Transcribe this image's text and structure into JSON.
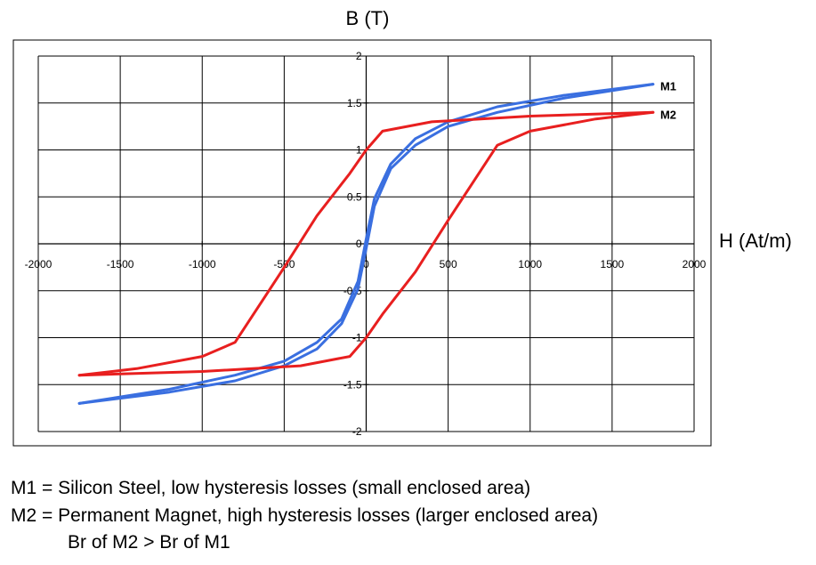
{
  "chart_data": {
    "type": "line",
    "ylabel": "B (T)",
    "xlabel": "H (At/m)",
    "xlim": [
      -2000,
      2000
    ],
    "ylim": [
      -2,
      2
    ],
    "x_ticks": [
      -2000,
      -1500,
      -1000,
      -500,
      0,
      500,
      1000,
      1500,
      2000
    ],
    "y_ticks": [
      -2,
      -1.5,
      -1,
      -0.5,
      0,
      0.5,
      1,
      1.5,
      2
    ],
    "x_tick_labels": [
      "-2000",
      "-1500",
      "-1000",
      "-500",
      "0",
      "500",
      "1000",
      "1500",
      "2000"
    ],
    "y_tick_labels": [
      "-2",
      "-1.5",
      "-1",
      "-0.5",
      "0",
      "0.5",
      "1",
      "1.5",
      "2"
    ],
    "grid": true,
    "legend": "none",
    "series": [
      {
        "name": "M1",
        "color": "#3a6fe0",
        "branches": [
          {
            "x": [
              -1750,
              -1200,
              -800,
              -500,
              -300,
              -150,
              -50,
              0,
              50,
              150,
              300,
              500,
              800,
              1200,
              1750
            ],
            "y": [
              -1.7,
              -1.58,
              -1.46,
              -1.3,
              -1.12,
              -0.85,
              -0.48,
              -0.05,
              0.4,
              0.8,
              1.05,
              1.25,
              1.4,
              1.55,
              1.7
            ]
          },
          {
            "x": [
              1750,
              1200,
              800,
              500,
              300,
              150,
              50,
              0,
              -50,
              -150,
              -300,
              -500,
              -800,
              -1200,
              -1750
            ],
            "y": [
              1.7,
              1.58,
              1.46,
              1.3,
              1.12,
              0.85,
              0.48,
              0.05,
              -0.4,
              -0.8,
              -1.05,
              -1.25,
              -1.4,
              -1.55,
              -1.7
            ]
          }
        ]
      },
      {
        "name": "M2",
        "color": "#e81f1f",
        "branches": [
          {
            "x": [
              -1750,
              -1000,
              -400,
              -100,
              0,
              100,
              300,
              500,
              800,
              1000,
              1400,
              1750
            ],
            "y": [
              -1.4,
              -1.36,
              -1.3,
              -1.2,
              -1.0,
              -0.75,
              -0.3,
              0.25,
              1.05,
              1.2,
              1.33,
              1.4
            ]
          },
          {
            "x": [
              1750,
              1000,
              400,
              100,
              0,
              -100,
              -300,
              -500,
              -800,
              -1000,
              -1400,
              -1750
            ],
            "y": [
              1.4,
              1.36,
              1.3,
              1.2,
              1.0,
              0.75,
              0.3,
              -0.25,
              -1.05,
              -1.2,
              -1.33,
              -1.4
            ]
          }
        ]
      }
    ]
  },
  "captions": [
    "M1 = Silicon Steel, low hysteresis losses (small enclosed area)",
    "M2 = Permanent Magnet, high hysteresis losses (larger enclosed area)",
    "Br of M2 > Br of M1"
  ]
}
